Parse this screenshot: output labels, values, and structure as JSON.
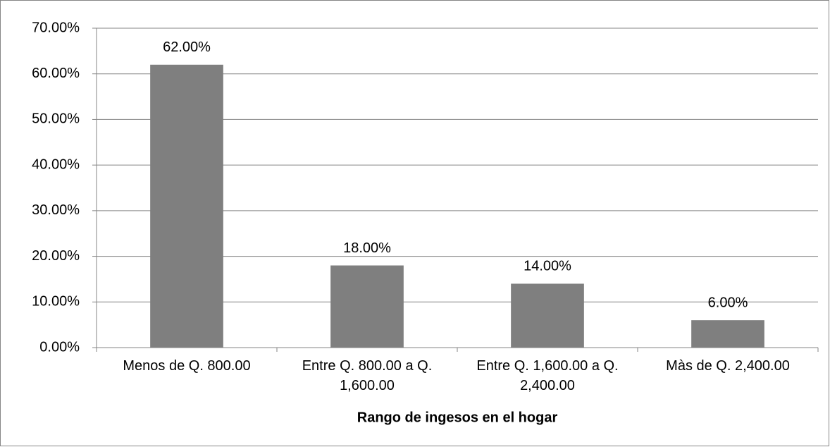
{
  "chart_data": {
    "type": "bar",
    "x_label": "Rango de ingesos en el hogar",
    "categories": [
      "Menos de Q. 800.00",
      "Entre Q. 800.00 a Q. 1,600.00",
      "Entre Q. 1,600.00 a Q. 2,400.00",
      "Màs de Q. 2,400.00"
    ],
    "values": [
      62,
      18,
      14,
      6
    ],
    "value_labels": [
      "62.00%",
      "18.00%",
      "14.00%",
      "6.00%"
    ],
    "color": "#7f7f7f",
    "ylim": [
      0,
      70
    ],
    "yticks": [
      {
        "value": 0,
        "label": "0.00%"
      },
      {
        "value": 10,
        "label": "10.00%"
      },
      {
        "value": 20,
        "label": "20.00%"
      },
      {
        "value": 30,
        "label": "30.00%"
      },
      {
        "value": 40,
        "label": "40.00%"
      },
      {
        "value": 50,
        "label": "50.00%"
      },
      {
        "value": 60,
        "label": "60.00%"
      },
      {
        "value": 70,
        "label": "70.00%"
      }
    ],
    "grid": true
  }
}
